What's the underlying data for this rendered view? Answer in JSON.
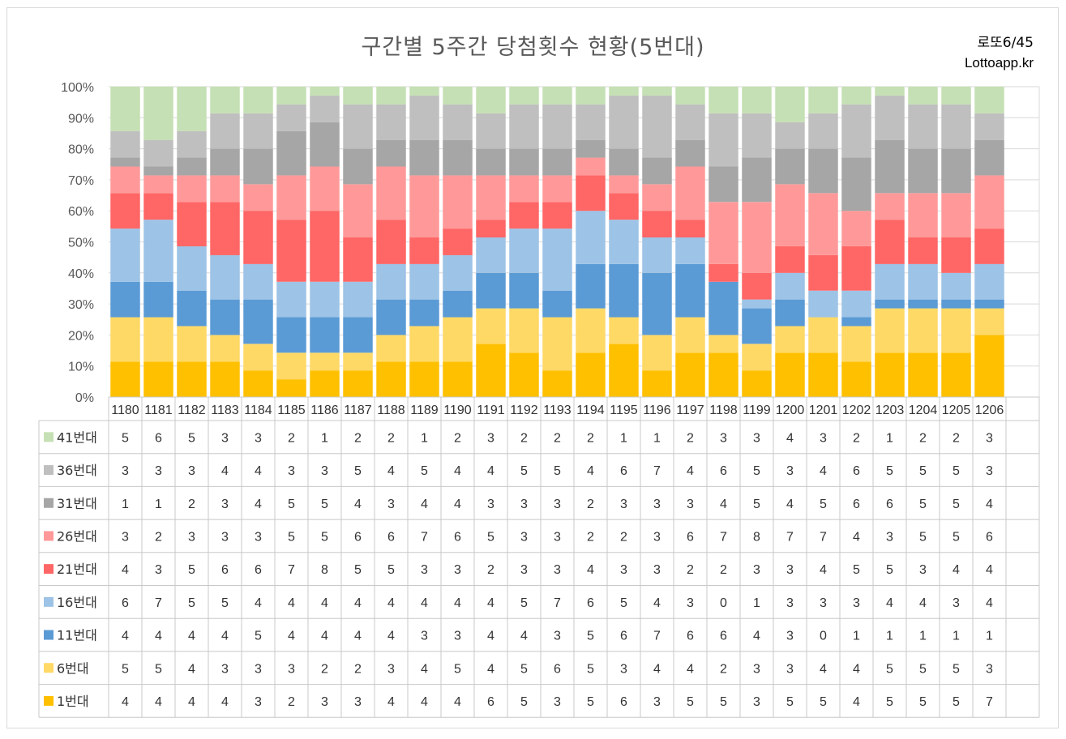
{
  "header": {
    "title": "구간별 5주간 당첨횟수 현황(5번대)",
    "brand_line1": "로또6/45",
    "brand_line2": "Lottoapp.kr"
  },
  "chart_data": {
    "type": "bar",
    "stacked": "percent",
    "title": "구간별 5주간 당첨횟수 현황(5번대)",
    "ylim": [
      0,
      100
    ],
    "yticks": [
      "0%",
      "10%",
      "20%",
      "30%",
      "40%",
      "50%",
      "60%",
      "70%",
      "80%",
      "90%",
      "100%"
    ],
    "categories": [
      "1180",
      "1181",
      "1182",
      "1183",
      "1184",
      "1185",
      "1186",
      "1187",
      "1188",
      "1189",
      "1190",
      "1191",
      "1192",
      "1193",
      "1194",
      "1195",
      "1196",
      "1197",
      "1198",
      "1199",
      "1200",
      "1201",
      "1202",
      "1203",
      "1204",
      "1205",
      "1206"
    ],
    "series": [
      {
        "name": "1번대",
        "color": "#ffc000",
        "values": [
          4,
          4,
          4,
          4,
          3,
          2,
          3,
          3,
          4,
          4,
          4,
          6,
          5,
          3,
          5,
          6,
          3,
          5,
          5,
          3,
          5,
          5,
          4,
          5,
          5,
          5,
          7
        ]
      },
      {
        "name": "6번대",
        "color": "#ffd966",
        "values": [
          5,
          5,
          4,
          3,
          3,
          3,
          2,
          2,
          3,
          4,
          5,
          4,
          5,
          6,
          5,
          3,
          4,
          4,
          2,
          3,
          3,
          4,
          4,
          5,
          5,
          5,
          3
        ]
      },
      {
        "name": "11번대",
        "color": "#5b9bd5",
        "values": [
          4,
          4,
          4,
          4,
          5,
          4,
          4,
          4,
          4,
          3,
          3,
          4,
          4,
          3,
          5,
          6,
          7,
          6,
          6,
          4,
          3,
          0,
          1,
          1,
          1,
          1,
          1
        ]
      },
      {
        "name": "16번대",
        "color": "#9dc3e6",
        "values": [
          6,
          7,
          5,
          5,
          4,
          4,
          4,
          4,
          4,
          4,
          4,
          4,
          5,
          7,
          6,
          5,
          4,
          3,
          0,
          1,
          3,
          3,
          3,
          4,
          4,
          3,
          4
        ]
      },
      {
        "name": "21번대",
        "color": "#ff6666",
        "values": [
          4,
          3,
          5,
          6,
          6,
          7,
          8,
          5,
          5,
          3,
          3,
          2,
          3,
          3,
          4,
          3,
          3,
          2,
          2,
          3,
          3,
          4,
          5,
          5,
          3,
          4,
          4
        ]
      },
      {
        "name": "26번대",
        "color": "#ff9999",
        "values": [
          3,
          2,
          3,
          3,
          3,
          5,
          5,
          6,
          6,
          7,
          6,
          5,
          3,
          3,
          2,
          2,
          3,
          6,
          7,
          8,
          7,
          7,
          4,
          3,
          5,
          5,
          6
        ]
      },
      {
        "name": "31번대",
        "color": "#a6a6a6",
        "values": [
          1,
          1,
          2,
          3,
          4,
          5,
          5,
          4,
          3,
          4,
          4,
          3,
          3,
          3,
          2,
          3,
          3,
          3,
          4,
          5,
          4,
          5,
          6,
          6,
          5,
          5,
          4
        ]
      },
      {
        "name": "36번대",
        "color": "#bfbfbf",
        "values": [
          3,
          3,
          3,
          4,
          4,
          3,
          3,
          5,
          4,
          5,
          4,
          4,
          5,
          5,
          4,
          6,
          7,
          4,
          6,
          5,
          3,
          4,
          6,
          5,
          5,
          5,
          3
        ]
      },
      {
        "name": "41번대",
        "color": "#c5e0b4",
        "values": [
          5,
          6,
          5,
          3,
          3,
          2,
          1,
          2,
          2,
          1,
          2,
          3,
          2,
          2,
          2,
          1,
          1,
          2,
          3,
          3,
          4,
          3,
          2,
          1,
          2,
          2,
          3
        ]
      }
    ]
  }
}
